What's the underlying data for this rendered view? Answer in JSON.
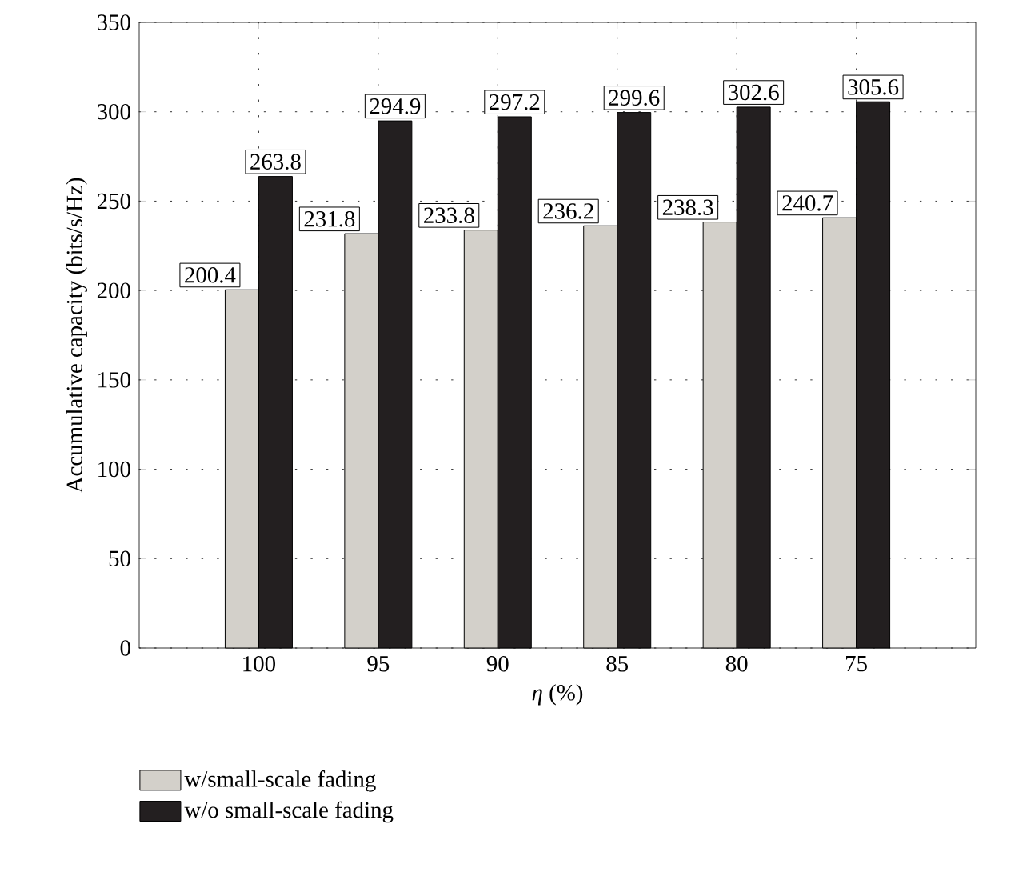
{
  "chart_data": {
    "type": "bar",
    "xlabel": "*η* (%)",
    "ylabel": "Accumulative capacity (bits/s/Hz)",
    "categories": [
      "100",
      "95",
      "90",
      "85",
      "80",
      "75"
    ],
    "series": [
      {
        "name": "w/small-scale fading",
        "color": "#d3d0ca",
        "values": [
          200.4,
          231.8,
          233.8,
          236.2,
          238.3,
          240.7
        ]
      },
      {
        "name": "w/o small-scale fading",
        "color": "#231f20",
        "values": [
          263.8,
          294.9,
          297.2,
          299.6,
          302.6,
          305.6
        ]
      }
    ],
    "ylim": [
      0,
      350
    ],
    "yticks": [
      0,
      50,
      100,
      150,
      200,
      250,
      300,
      350
    ],
    "grid": true,
    "legend": "bottom",
    "data_labels": true
  }
}
